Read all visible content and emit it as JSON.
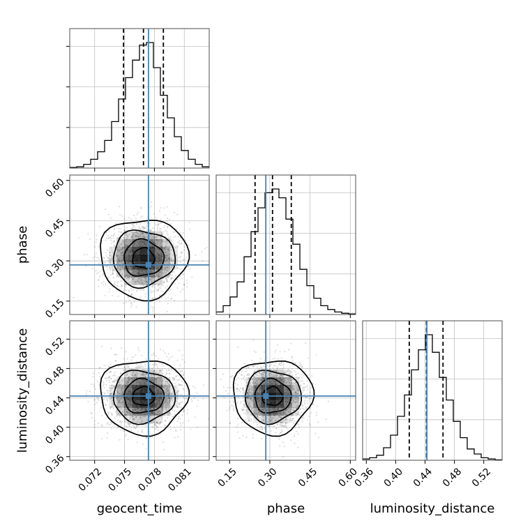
{
  "chart_data": {
    "type": "corner",
    "parameters": [
      {
        "key": "geocent_time",
        "label": "geocent_time",
        "range": [
          0.0695,
          0.0835
        ],
        "ticks": [
          0.072,
          0.075,
          0.078,
          0.081
        ],
        "tick_labels": [
          "0.072",
          "0.075",
          "0.078",
          "0.081"
        ],
        "truth": 0.0774,
        "quantiles": [
          0.0749,
          0.0769,
          0.0789
        ]
      },
      {
        "key": "phase",
        "label": "phase",
        "range": [
          0.1,
          0.62
        ],
        "ticks": [
          0.15,
          0.3,
          0.45,
          0.6
        ],
        "tick_labels": [
          "0.15",
          "0.30",
          "0.45",
          "0.60"
        ],
        "truth": 0.285,
        "quantiles": [
          0.245,
          0.31,
          0.38
        ]
      },
      {
        "key": "luminosity_distance",
        "label": "luminosity_distance",
        "range": [
          0.355,
          0.545
        ],
        "ticks": [
          0.36,
          0.4,
          0.44,
          0.48,
          0.52
        ],
        "tick_labels": [
          "0.36",
          "0.40",
          "0.44",
          "0.48",
          "0.52"
        ],
        "truth": 0.4425,
        "quantiles": [
          0.4185,
          0.442,
          0.4645
        ]
      }
    ],
    "histograms": {
      "geocent_time": {
        "bin_edges": [
          0.0695,
          0.0702,
          0.0709,
          0.0716,
          0.0723,
          0.073,
          0.0737,
          0.0744,
          0.0751,
          0.0758,
          0.0765,
          0.0772,
          0.0779,
          0.0786,
          0.0793,
          0.08,
          0.0807,
          0.0814,
          0.0821,
          0.0828,
          0.0835
        ],
        "counts": [
          0.005,
          0.01,
          0.03,
          0.07,
          0.13,
          0.22,
          0.37,
          0.55,
          0.72,
          0.86,
          0.98,
          1.0,
          0.8,
          0.58,
          0.4,
          0.25,
          0.14,
          0.07,
          0.03,
          0.01
        ]
      },
      "phase": {
        "bin_edges": [
          0.1,
          0.126,
          0.152,
          0.178,
          0.204,
          0.23,
          0.256,
          0.282,
          0.308,
          0.334,
          0.36,
          0.386,
          0.412,
          0.438,
          0.464,
          0.49,
          0.516,
          0.542,
          0.568,
          0.594,
          0.62
        ],
        "counts": [
          0.02,
          0.07,
          0.14,
          0.26,
          0.46,
          0.66,
          0.85,
          0.97,
          1.0,
          0.93,
          0.76,
          0.56,
          0.36,
          0.23,
          0.13,
          0.07,
          0.04,
          0.02,
          0.01,
          0.005
        ]
      },
      "luminosity_distance": {
        "bin_edges": [
          0.355,
          0.3645,
          0.374,
          0.3835,
          0.393,
          0.4025,
          0.412,
          0.4215,
          0.431,
          0.4405,
          0.45,
          0.4595,
          0.469,
          0.4785,
          0.488,
          0.4975,
          0.507,
          0.5165,
          0.526,
          0.5355,
          0.545
        ],
        "counts": [
          0.01,
          0.02,
          0.04,
          0.1,
          0.2,
          0.35,
          0.52,
          0.72,
          0.88,
          1.0,
          0.86,
          0.66,
          0.48,
          0.31,
          0.18,
          0.09,
          0.05,
          0.02,
          0.01,
          0.003
        ]
      }
    },
    "contour_sigmas": [
      0.55,
      1.0,
      1.55,
      2.2
    ],
    "grid": true
  },
  "colors": {
    "truth": "#4682b4",
    "hist": "#000000",
    "quantile": "#000000",
    "grid": "#c0c0c0"
  }
}
